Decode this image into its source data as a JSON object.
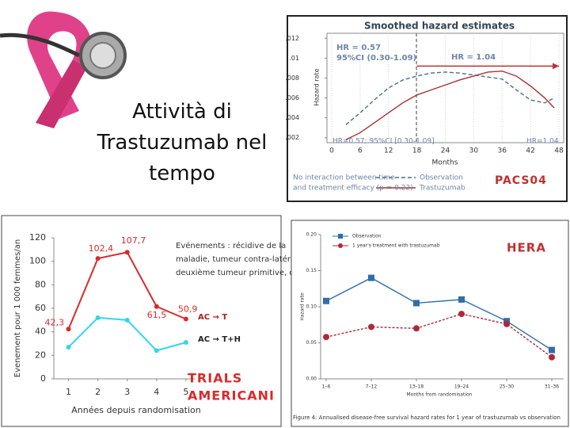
{
  "slide": {
    "title": "Attività di Trastuzumab nel tempo"
  },
  "chart_data": [
    {
      "type": "line",
      "title": "Smoothed hazard estimates",
      "xlabel": "Months",
      "ylabel": "Hazard rate",
      "x": [
        3,
        6,
        9,
        12,
        15,
        18,
        21,
        24,
        27,
        30,
        33,
        36,
        39,
        42,
        45,
        47
      ],
      "series": [
        {
          "name": "Observation",
          "color": "#4a6d8c",
          "dashed": true,
          "values": [
            0.0033,
            0.0045,
            0.0058,
            0.007,
            0.0078,
            0.0082,
            0.0085,
            0.0086,
            0.0085,
            0.0083,
            0.0081,
            0.0079,
            0.0068,
            0.0058,
            0.0055,
            0.006
          ]
        },
        {
          "name": "Trastuzumab",
          "color": "#a83232",
          "dashed": false,
          "values": [
            0.0018,
            0.0025,
            0.0035,
            0.0045,
            0.0055,
            0.0063,
            0.0068,
            0.0073,
            0.0078,
            0.0082,
            0.0086,
            0.0087,
            0.0082,
            0.0072,
            0.006,
            0.005
          ]
        }
      ],
      "xlim": [
        -1,
        49
      ],
      "xticks": [
        0,
        6,
        12,
        18,
        24,
        30,
        36,
        42,
        48
      ],
      "ylim": [
        0.0015,
        0.0125
      ],
      "yticks": [
        {
          "value": 0.002,
          "label": ".002"
        },
        {
          "value": 0.004,
          "label": ".004"
        },
        {
          "value": 0.006,
          "label": ".006"
        },
        {
          "value": 0.008,
          "label": ".008"
        },
        {
          "value": 0.01,
          "label": ".01"
        },
        {
          "value": 0.012,
          "label": ".012"
        }
      ],
      "annotations": [
        "HR = 0.57",
        "95%CI (0.30-1.09)",
        "HR = 1.04",
        "HR=0.57; 95%CI [0.30-1.09]",
        "HR=1.04",
        "No interaction between time",
        "and treatment efficacy (p = 0.22)"
      ],
      "label": [
        "PACS04"
      ],
      "grid": true
    },
    {
      "type": "line",
      "ylabel": "Evenement pour 1 000 femmes/an",
      "xlabel": "Années depuis randomisation",
      "x": [
        1,
        2,
        3,
        4,
        5
      ],
      "series": [
        {
          "name": "AC → T",
          "color": "#d92b2b",
          "values": [
            42.3,
            102.4,
            107.7,
            61.5,
            50.9
          ],
          "value_labels": [
            "42,3",
            "102,4",
            "107,7",
            "61,5",
            "50,9"
          ]
        },
        {
          "name": "AC → T+H",
          "color": "#33d6e8",
          "values": [
            27,
            52,
            50,
            24,
            31
          ]
        }
      ],
      "xlim": [
        0.5,
        5.3
      ],
      "xticks": [
        1,
        2,
        3,
        4,
        5
      ],
      "ylim": [
        0,
        120
      ],
      "yticks": [
        0,
        20,
        40,
        60,
        80,
        100,
        120
      ],
      "annotations": [
        "Evénements : récidive de la",
        "maladie, tumeur contra-latérale,",
        "deuxième tumeur primitive, décès"
      ],
      "label": [
        "TRIALS",
        "AMERICANI"
      ],
      "grid": false
    },
    {
      "type": "line",
      "ylabel": "Hazard rate",
      "xlabel": "Months from randomisation",
      "categories": [
        "1–6",
        "7–12",
        "13–18",
        "19–24",
        "25–30",
        "31–36"
      ],
      "series": [
        {
          "name": "Observation",
          "color": "#2f6ea8",
          "marker": "square",
          "values": [
            0.108,
            0.14,
            0.105,
            0.11,
            0.08,
            0.04
          ]
        },
        {
          "name": "1 year's treatment with trastuzumab",
          "color": "#b0283c",
          "marker": "circle",
          "values": [
            0.058,
            0.072,
            0.07,
            0.09,
            0.076,
            0.03
          ]
        }
      ],
      "ylim": [
        0,
        0.2
      ],
      "yticks": [
        {
          "value": 0,
          "label": "0.00"
        },
        {
          "value": 0.05,
          "label": "0.05"
        },
        {
          "value": 0.1,
          "label": "0.10"
        },
        {
          "value": 0.15,
          "label": "0.15"
        },
        {
          "value": 0.2,
          "label": "0.20"
        }
      ],
      "annotations": [
        "Figure 4: Annualised disease-free survival hazard rates for 1 year of trastuzumab vs observation"
      ],
      "label": [
        "HERA"
      ],
      "grid": false
    }
  ]
}
